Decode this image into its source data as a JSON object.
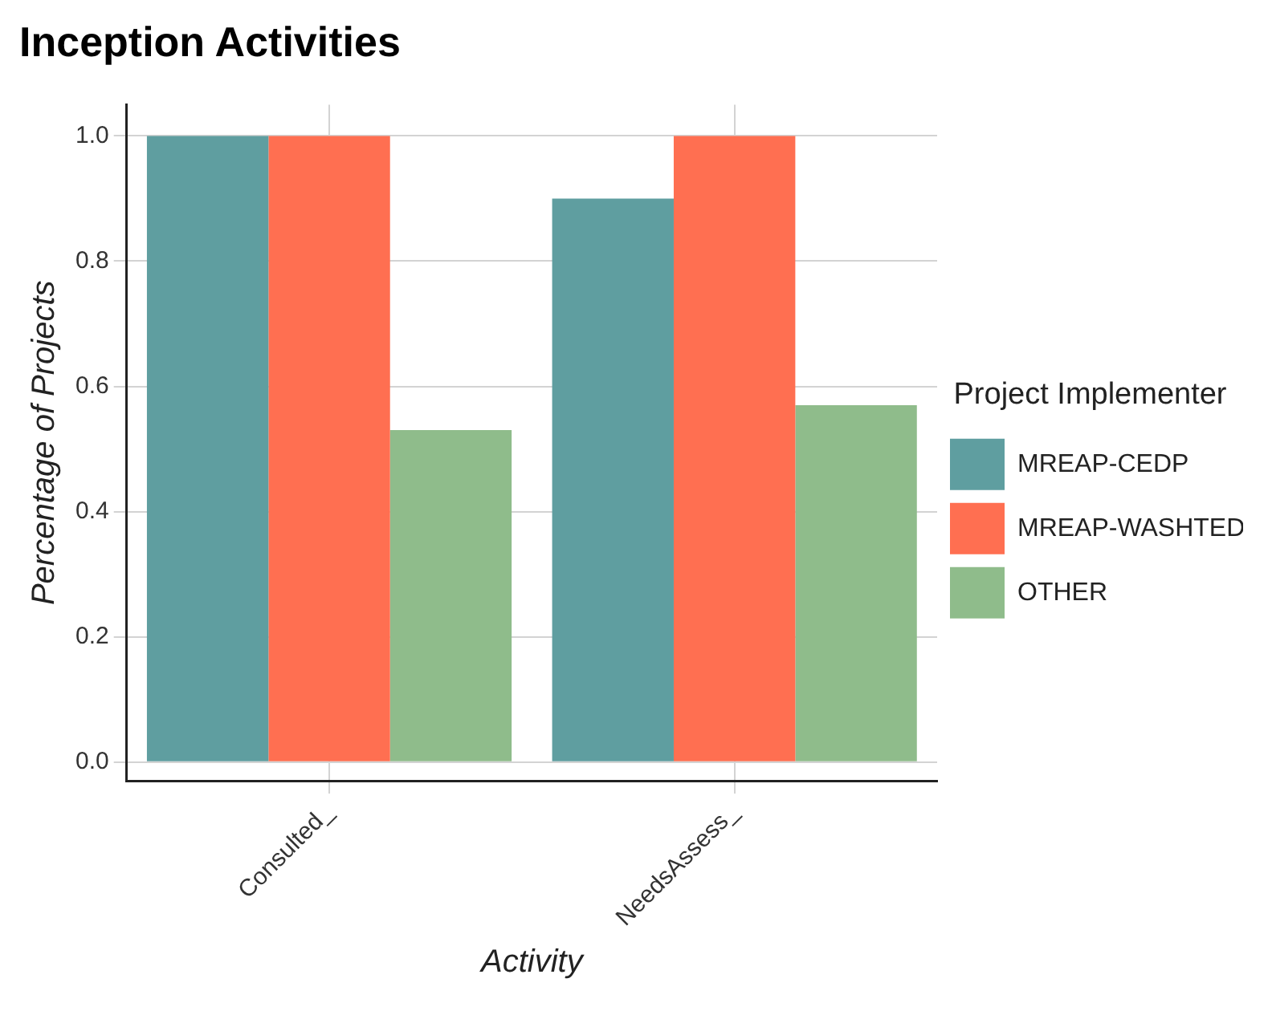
{
  "chart_data": {
    "type": "bar",
    "title": "Inception Activities",
    "xlabel": "Activity",
    "ylabel": "Percentage of Projects",
    "legend_title": "Project Implementer",
    "categories": [
      "Consulted_",
      "NeedsAssess_"
    ],
    "series": [
      {
        "name": "MREAP-CEDP",
        "color": "#5f9ea0",
        "values": [
          1.0,
          0.9
        ]
      },
      {
        "name": "MREAP-WASHTED",
        "color": "#ff6f51",
        "values": [
          1.0,
          1.0
        ]
      },
      {
        "name": "OTHER",
        "color": "#8fbc8b",
        "values": [
          0.53,
          0.57
        ]
      }
    ],
    "ylim": [
      -0.03,
      1.05
    ],
    "yticks": [
      {
        "value": 0,
        "label": "0.0"
      },
      0.2,
      0.4,
      0.6,
      0.8,
      {
        "value": 1,
        "label": "1.0"
      }
    ],
    "grid": true,
    "legend": "right"
  }
}
